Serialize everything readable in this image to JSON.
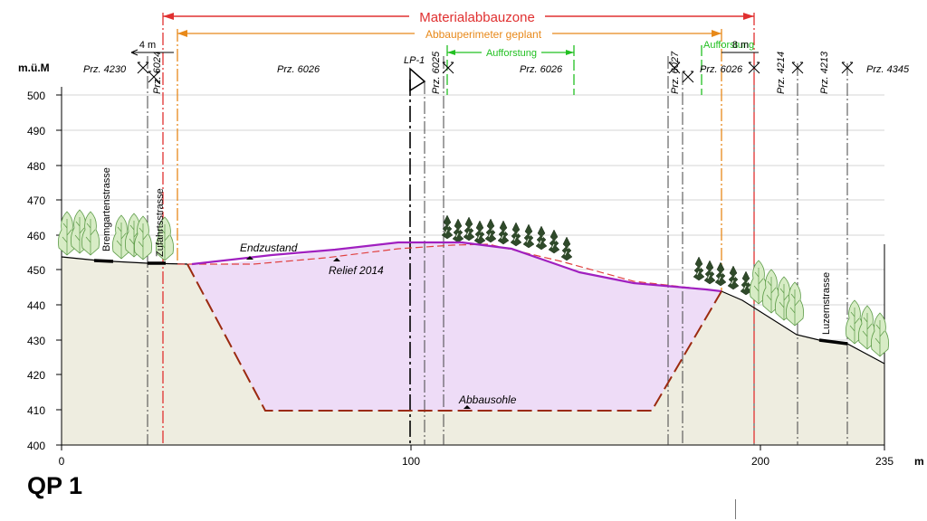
{
  "profile_name": "QP 1",
  "header": {
    "zone_label": "Materialabbauzone",
    "perimeter_label": "Abbauperimeter geplant",
    "afforestation_label": "Aufforstung",
    "afforestation_label_right": "Aufforstung",
    "width_left": "4 m",
    "width_right": "8 m"
  },
  "axes": {
    "y_unit": "m.ü.M",
    "x_unit": "m",
    "y_ticks": [
      "500",
      "490",
      "480",
      "470",
      "460",
      "450",
      "440",
      "430",
      "420",
      "410",
      "400"
    ],
    "x_ticks": [
      "0",
      "100",
      "200",
      "235"
    ]
  },
  "parcels": [
    "Prz. 4230",
    "Prz. 6024",
    "Prz. 6026",
    "Prz. 6025",
    "Prz. 6026",
    "Prz. 6027",
    "Prz. 6026",
    "Prz. 4214",
    "Prz. 4213",
    "Prz. 4345"
  ],
  "point_label": "LP-1",
  "annotations": {
    "end_state": "Endzustand",
    "relief": "Relief 2014",
    "floor": "Abbausohle"
  },
  "roads": [
    "Bremgartenstrasse",
    "Zufahrtsstrasse",
    "Luzernstrasse"
  ],
  "colors": {
    "zone": "#e03030",
    "perimeter": "#e8891a",
    "afforestation": "#22c022",
    "end_state": "#a020c0",
    "relief": "#e04040",
    "excavation": "#9b2a10",
    "excavation_fill": "#eedcf7",
    "terrain_fill": "#eeede0"
  }
}
